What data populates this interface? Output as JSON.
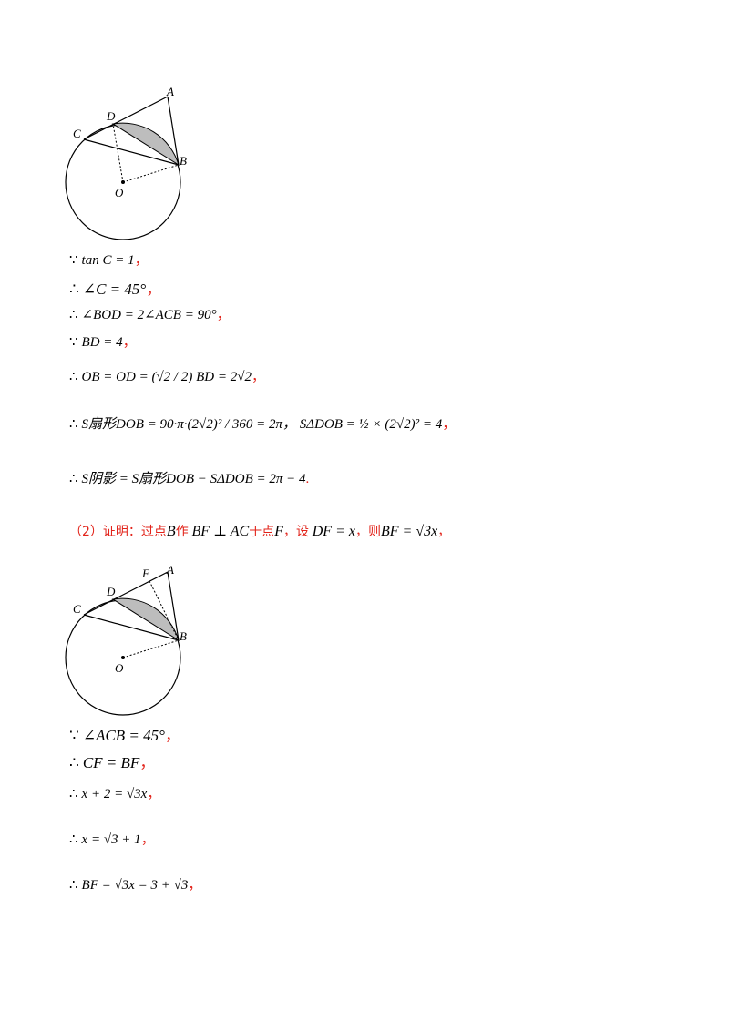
{
  "figure1": {
    "labels": {
      "A": "A",
      "B": "B",
      "C": "C",
      "D": "D",
      "O": "O"
    }
  },
  "figure2": {
    "labels": {
      "A": "A",
      "B": "B",
      "C": "C",
      "D": "D",
      "F": "F",
      "O": "O"
    }
  },
  "part1_lines": [
    {
      "sym": "∵",
      "expr": "tan C = 1",
      "tail": "，"
    },
    {
      "sym": "∴",
      "expr": "∠C = 45°",
      "tail": "，"
    },
    {
      "sym": "∴",
      "expr": "∠BOD = 2∠ACB = 90°",
      "tail": "，"
    },
    {
      "sym": "∵",
      "expr": "BD = 4",
      "tail": "，"
    },
    {
      "sym": "∴",
      "expr": "OB = OD = (√2 / 2) BD = 2√2",
      "tail": "，"
    },
    {
      "sym": "∴",
      "expr": "S扇形DOB = 90·π·(2√2)² / 360 = 2π，  SΔDOB = ½ × (2√2)² = 4",
      "tail": "，"
    },
    {
      "sym": "∴",
      "expr": "S阴影 = S扇形DOB − SΔDOB = 2π − 4",
      "tail": "."
    }
  ],
  "proof": {
    "prefix": "（2）证明：过点",
    "p1": "B",
    "t1": "作",
    "m1": "BF ⊥ AC",
    "t2": "于点",
    "p2": "F",
    "t3": "，设",
    "m2": "DF = x",
    "t4": "，则",
    "m3": "BF = √3x",
    "t5": "，"
  },
  "part2_lines": [
    {
      "sym": "∵",
      "expr": "∠ACB = 45°",
      "tail": "，"
    },
    {
      "sym": "∴",
      "expr": "CF = BF",
      "tail": "，"
    },
    {
      "sym": "∴",
      "expr": "x + 2 = √3x",
      "tail": "，"
    },
    {
      "sym": "∴",
      "expr": "x = √3 + 1",
      "tail": "，"
    },
    {
      "sym": "∴",
      "expr": "BF = √3x = 3 + √3",
      "tail": "，"
    }
  ]
}
